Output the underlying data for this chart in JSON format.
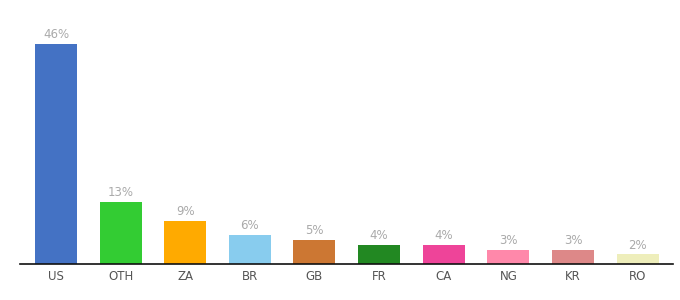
{
  "categories": [
    "US",
    "OTH",
    "ZA",
    "BR",
    "GB",
    "FR",
    "CA",
    "NG",
    "KR",
    "RO"
  ],
  "values": [
    46,
    13,
    9,
    6,
    5,
    4,
    4,
    3,
    3,
    2
  ],
  "bar_colors": [
    "#4472c4",
    "#33cc33",
    "#ffaa00",
    "#88ccee",
    "#cc7733",
    "#228822",
    "#ee4499",
    "#ff88aa",
    "#dd8888",
    "#eeeebb"
  ],
  "background_color": "#ffffff",
  "label_color": "#aaaaaa",
  "ylim": [
    0,
    52
  ],
  "bar_width": 0.65
}
